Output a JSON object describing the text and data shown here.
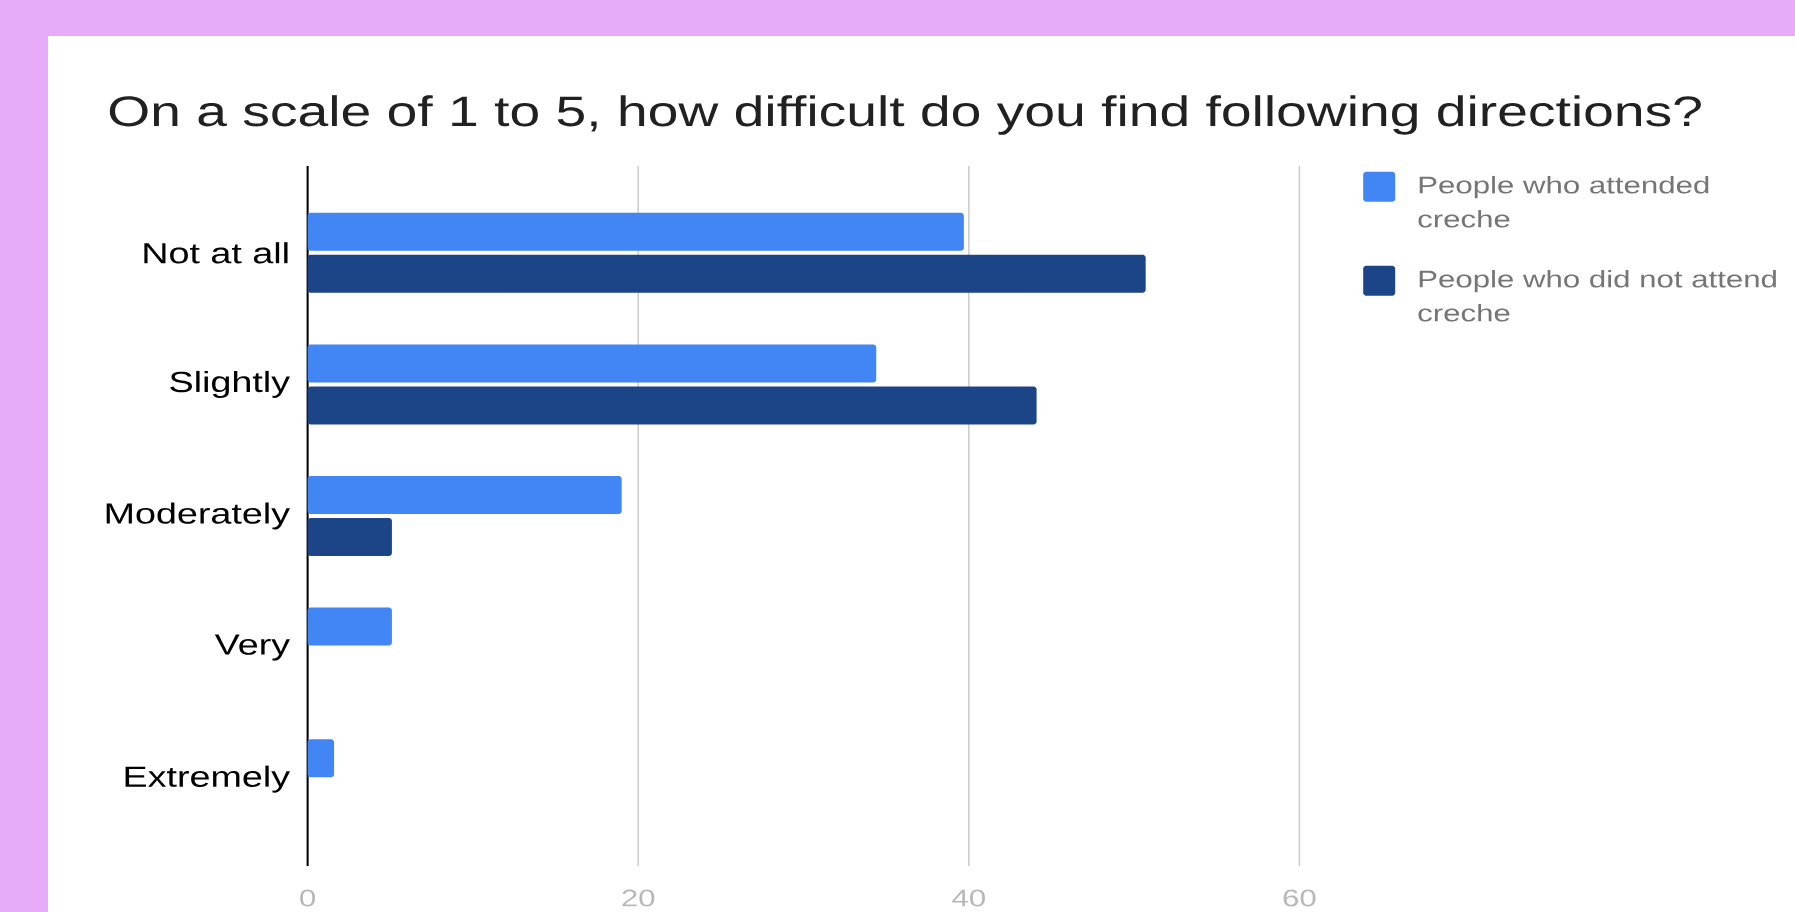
{
  "chart_data": {
    "type": "bar",
    "orientation": "horizontal",
    "title": "On a scale of 1 to 5, how difficult do you find following directions?",
    "categories": [
      "Not at all",
      "Slightly",
      "Moderately",
      "Very",
      "Extremely"
    ],
    "series": [
      {
        "name": "People who attended creche",
        "color": "#4285f4",
        "values": [
          39.7,
          34.4,
          19.0,
          5.1,
          1.6
        ]
      },
      {
        "name": "People who did not attend creche",
        "color": "#1c4587",
        "values": [
          50.7,
          44.1,
          5.1,
          0,
          0
        ]
      }
    ],
    "xlim": [
      0,
      60
    ],
    "xticks": [
      0,
      20,
      40,
      60
    ],
    "grid": "x",
    "legend": "top right"
  }
}
